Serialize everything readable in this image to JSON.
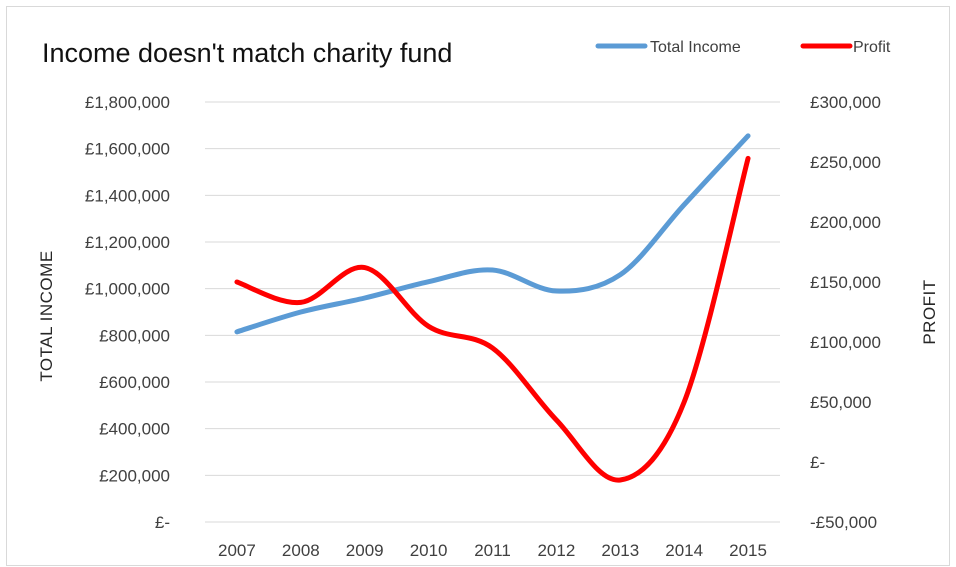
{
  "chart_data": {
    "type": "line",
    "title": "Income doesn't match charity fund",
    "categories": [
      "2007",
      "2008",
      "2009",
      "2010",
      "2011",
      "2012",
      "2013",
      "2014",
      "2015"
    ],
    "series": [
      {
        "name": "Total Income",
        "axis": "left",
        "color": "#5B9BD5",
        "values": [
          815000,
          900000,
          960000,
          1030000,
          1080000,
          990000,
          1060000,
          1360000,
          1655000
        ]
      },
      {
        "name": "Profit",
        "axis": "right",
        "color": "#FF0000",
        "values": [
          150000,
          133000,
          162000,
          113000,
          95000,
          35000,
          -15000,
          50000,
          253000
        ]
      }
    ],
    "y_left": {
      "label": "TOTAL INCOME",
      "range": [
        0,
        1800000
      ],
      "ticks": [
        0,
        200000,
        400000,
        600000,
        800000,
        1000000,
        1200000,
        1400000,
        1600000,
        1800000
      ],
      "tick_labels": [
        "£-",
        "£200,000",
        "£400,000",
        "£600,000",
        "£800,000",
        "£1,000,000",
        "£1,200,000",
        "£1,400,000",
        "£1,600,000",
        "£1,800,000"
      ]
    },
    "y_right": {
      "label": "PROFIT",
      "range": [
        -50000,
        300000
      ],
      "ticks": [
        -50000,
        0,
        50000,
        100000,
        150000,
        200000,
        250000,
        300000
      ],
      "tick_labels": [
        "-£50,000",
        "£-",
        "£50,000",
        "£100,000",
        "£150,000",
        "£200,000",
        "£250,000",
        "£300,000"
      ]
    },
    "grid": true,
    "legend_position": "top-right",
    "smooth": true
  }
}
